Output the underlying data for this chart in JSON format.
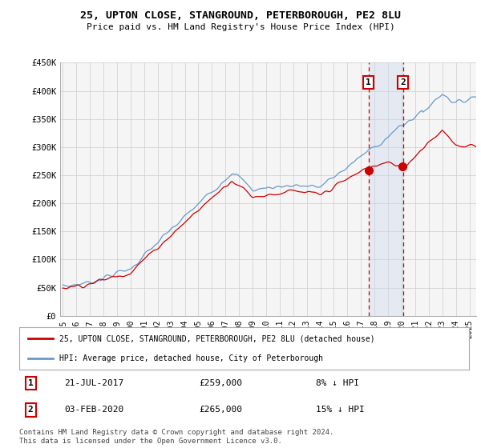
{
  "title1": "25, UPTON CLOSE, STANGROUND, PETERBOROUGH, PE2 8LU",
  "title2": "Price paid vs. HM Land Registry's House Price Index (HPI)",
  "ylim": [
    0,
    450000
  ],
  "yticks": [
    0,
    50000,
    100000,
    150000,
    200000,
    250000,
    300000,
    350000,
    400000,
    450000
  ],
  "ytick_labels": [
    "£0",
    "£50K",
    "£100K",
    "£150K",
    "£200K",
    "£250K",
    "£300K",
    "£350K",
    "£400K",
    "£450K"
  ],
  "xlim_start": 1994.8,
  "xlim_end": 2025.5,
  "sale1_date": "21-JUL-2017",
  "sale1_price": 259000,
  "sale1_x": 2017.55,
  "sale1_label": "8% ↓ HPI",
  "sale2_date": "03-FEB-2020",
  "sale2_price": 265000,
  "sale2_x": 2020.09,
  "sale2_label": "15% ↓ HPI",
  "legend_line1": "25, UPTON CLOSE, STANGROUND, PETERBOROUGH, PE2 8LU (detached house)",
  "legend_line2": "HPI: Average price, detached house, City of Peterborough",
  "footer": "Contains HM Land Registry data © Crown copyright and database right 2024.\nThis data is licensed under the Open Government Licence v3.0.",
  "red_color": "#cc0000",
  "blue_color": "#6699cc",
  "bg_color": "#ffffff",
  "plot_bg_color": "#f5f5f5",
  "grid_color": "#cccccc",
  "span_color": "#c8d8ee"
}
